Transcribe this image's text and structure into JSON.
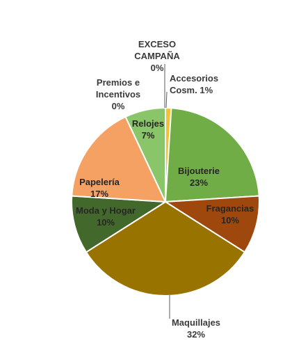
{
  "chart_data": {
    "type": "pie",
    "title": "",
    "slices": [
      {
        "name": "Accesorios Cosm.",
        "label_lines": [
          "Accesorios",
          "Cosm. 1%"
        ],
        "value": 1,
        "color": "#F2C230"
      },
      {
        "name": "Bijouterie",
        "label_lines": [
          "Bijouterie",
          "23%"
        ],
        "value": 23,
        "color": "#70AD47"
      },
      {
        "name": "Fragancias",
        "label_lines": [
          "Fragancias",
          "10%"
        ],
        "value": 10,
        "color": "#9E480E"
      },
      {
        "name": "Maquillajes",
        "label_lines": [
          "Maquillajes",
          "32%"
        ],
        "value": 32,
        "color": "#997300"
      },
      {
        "name": "Moda y Hogar",
        "label_lines": [
          "Moda y Hogar",
          "10%"
        ],
        "value": 10,
        "color": "#43682B"
      },
      {
        "name": "Papelería",
        "label_lines": [
          "Papelería",
          "17%"
        ],
        "value": 17,
        "color": "#F4A163"
      },
      {
        "name": "Premios e Incentivos",
        "label_lines": [
          "Premios e",
          "Incentivos",
          "0%"
        ],
        "value": 0,
        "color": "#7F6000"
      },
      {
        "name": "Relojes",
        "label_lines": [
          "Relojes",
          "7%"
        ],
        "value": 7,
        "color": "#8BC56A"
      },
      {
        "name": "EXCESO CAMPAÑA",
        "label_lines": [
          "EXCESO",
          "CAMPAÑA",
          "0%"
        ],
        "value": 0,
        "color": "#C55A11"
      }
    ],
    "legend": "none",
    "data_labels": "category and percent"
  }
}
